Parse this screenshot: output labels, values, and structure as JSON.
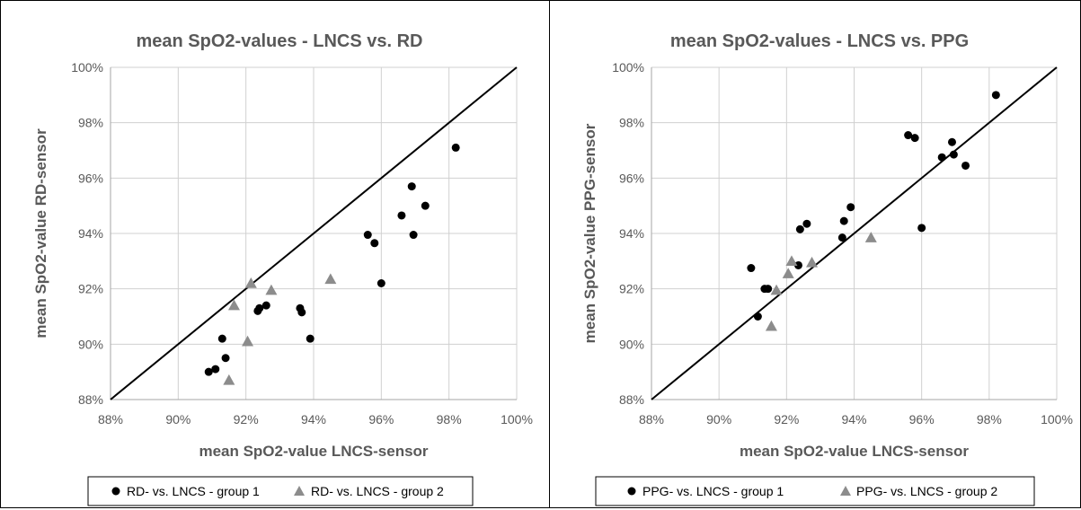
{
  "chart_data": [
    {
      "type": "scatter",
      "title": "mean SpO2-values - LNCS vs. RD",
      "xlabel": "mean SpO2-value LNCS-sensor",
      "ylabel": "mean SpO2-value RD-sensor",
      "xlim": [
        88,
        100
      ],
      "ylim": [
        88,
        100
      ],
      "ticks": [
        "88%",
        "90%",
        "92%",
        "94%",
        "96%",
        "98%",
        "100%"
      ],
      "grid": true,
      "identity_line": true,
      "legend_position": "bottom",
      "series": [
        {
          "name": "RD- vs. LNCS - group 1",
          "marker": "circle",
          "color": "#000000",
          "points": [
            [
              90.9,
              89.0
            ],
            [
              91.1,
              89.1
            ],
            [
              91.3,
              90.2
            ],
            [
              91.4,
              89.5
            ],
            [
              92.35,
              91.2
            ],
            [
              92.4,
              91.3
            ],
            [
              92.6,
              91.4
            ],
            [
              93.6,
              91.3
            ],
            [
              93.65,
              91.15
            ],
            [
              93.9,
              90.2
            ],
            [
              95.6,
              93.95
            ],
            [
              95.8,
              93.65
            ],
            [
              96.0,
              92.2
            ],
            [
              96.6,
              94.65
            ],
            [
              96.9,
              95.7
            ],
            [
              96.95,
              93.95
            ],
            [
              97.3,
              95.0
            ],
            [
              98.2,
              97.1
            ]
          ]
        },
        {
          "name": "RD- vs. LNCS - group 2",
          "marker": "triangle",
          "color": "#8c8c8c",
          "points": [
            [
              91.5,
              88.7
            ],
            [
              91.65,
              91.4
            ],
            [
              92.05,
              90.1
            ],
            [
              92.15,
              92.2
            ],
            [
              92.75,
              91.95
            ],
            [
              94.5,
              92.35
            ]
          ]
        }
      ]
    },
    {
      "type": "scatter",
      "title": "mean SpO2-values - LNCS vs. PPG",
      "xlabel": "mean SpO2-value LNCS-sensor",
      "ylabel": "mean SpO2-value PPG-sensor",
      "xlim": [
        88,
        100
      ],
      "ylim": [
        88,
        100
      ],
      "ticks": [
        "88%",
        "90%",
        "92%",
        "94%",
        "96%",
        "98%",
        "100%"
      ],
      "grid": true,
      "identity_line": true,
      "legend_position": "bottom",
      "series": [
        {
          "name": "PPG- vs. LNCS - group 1",
          "marker": "circle",
          "color": "#000000",
          "points": [
            [
              90.95,
              92.75
            ],
            [
              91.15,
              91.0
            ],
            [
              91.35,
              92.0
            ],
            [
              91.45,
              92.0
            ],
            [
              92.35,
              92.85
            ],
            [
              92.4,
              94.15
            ],
            [
              92.6,
              94.35
            ],
            [
              93.65,
              93.85
            ],
            [
              93.7,
              94.45
            ],
            [
              93.9,
              94.95
            ],
            [
              95.6,
              97.55
            ],
            [
              95.8,
              97.45
            ],
            [
              96.0,
              94.2
            ],
            [
              96.6,
              96.75
            ],
            [
              96.9,
              97.3
            ],
            [
              96.95,
              96.85
            ],
            [
              97.3,
              96.45
            ],
            [
              98.2,
              99.0
            ]
          ]
        },
        {
          "name": "PPG- vs. LNCS - group 2",
          "marker": "triangle",
          "color": "#8c8c8c",
          "points": [
            [
              91.55,
              90.65
            ],
            [
              91.7,
              91.95
            ],
            [
              92.05,
              92.55
            ],
            [
              92.15,
              93.0
            ],
            [
              92.75,
              92.95
            ],
            [
              94.5,
              93.85
            ]
          ]
        }
      ]
    }
  ]
}
